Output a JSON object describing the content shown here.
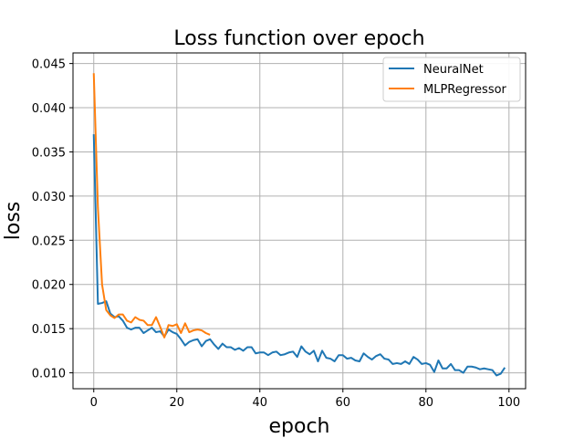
{
  "chart_data": {
    "type": "line",
    "title": "Loss function over epoch",
    "xlabel": "epoch",
    "ylabel": "loss",
    "xlim": [
      -5,
      104
    ],
    "ylim": [
      0.0082,
      0.0462
    ],
    "xticks": [
      0,
      20,
      40,
      60,
      80,
      100
    ],
    "yticks": [
      0.01,
      0.015,
      0.02,
      0.025,
      0.03,
      0.035,
      0.04,
      0.045
    ],
    "ytick_labels": [
      "0.010",
      "0.015",
      "0.020",
      "0.025",
      "0.030",
      "0.035",
      "0.040",
      "0.045"
    ],
    "grid": true,
    "legend": "top-right",
    "series": [
      {
        "name": "NeuralNet",
        "color": "#1f77b4",
        "x": [
          0,
          1,
          2,
          3,
          4,
          5,
          6,
          7,
          8,
          9,
          10,
          11,
          12,
          13,
          14,
          15,
          16,
          17,
          18,
          19,
          20,
          21,
          22,
          23,
          24,
          25,
          26,
          27,
          28,
          29,
          30,
          31,
          32,
          33,
          34,
          35,
          36,
          37,
          38,
          39,
          40,
          41,
          42,
          43,
          44,
          45,
          46,
          47,
          48,
          49,
          50,
          51,
          52,
          53,
          54,
          55,
          56,
          57,
          58,
          59,
          60,
          61,
          62,
          63,
          64,
          65,
          66,
          67,
          68,
          69,
          70,
          71,
          72,
          73,
          74,
          75,
          76,
          77,
          78,
          79,
          80,
          81,
          82,
          83,
          84,
          85,
          86,
          87,
          88,
          89,
          90,
          91,
          92,
          93,
          94,
          95,
          96,
          97,
          98,
          99
        ],
        "values": [
          0.037,
          0.0178,
          0.0179,
          0.0181,
          0.0167,
          0.0163,
          0.0164,
          0.0159,
          0.0151,
          0.0149,
          0.0151,
          0.0151,
          0.0145,
          0.0148,
          0.0151,
          0.0146,
          0.0147,
          0.0141,
          0.0149,
          0.0146,
          0.0144,
          0.0138,
          0.0131,
          0.0135,
          0.0137,
          0.0138,
          0.013,
          0.0136,
          0.0138,
          0.0132,
          0.0127,
          0.0133,
          0.0129,
          0.0129,
          0.0126,
          0.0128,
          0.0125,
          0.0129,
          0.0129,
          0.0122,
          0.0123,
          0.0123,
          0.012,
          0.0123,
          0.0124,
          0.012,
          0.0121,
          0.0123,
          0.0124,
          0.0118,
          0.013,
          0.0124,
          0.0121,
          0.0125,
          0.0113,
          0.0125,
          0.0117,
          0.0116,
          0.0113,
          0.012,
          0.012,
          0.0116,
          0.0117,
          0.0114,
          0.0113,
          0.0122,
          0.0118,
          0.0115,
          0.0119,
          0.0121,
          0.0116,
          0.0115,
          0.011,
          0.0111,
          0.011,
          0.0113,
          0.011,
          0.0118,
          0.0115,
          0.011,
          0.0111,
          0.0109,
          0.0101,
          0.0114,
          0.0105,
          0.0105,
          0.011,
          0.0103,
          0.0103,
          0.01,
          0.0107,
          0.0107,
          0.0106,
          0.0104,
          0.0105,
          0.0104,
          0.0103,
          0.0097,
          0.0099,
          0.0106
        ]
      },
      {
        "name": "MLPRegressor",
        "color": "#ff7f0e",
        "x": [
          0,
          1,
          2,
          3,
          4,
          5,
          6,
          7,
          8,
          9,
          10,
          11,
          12,
          13,
          14,
          15,
          16,
          17,
          18,
          19,
          20,
          21,
          22,
          23,
          24,
          25,
          26,
          27,
          28
        ],
        "values": [
          0.0439,
          0.0287,
          0.02,
          0.0171,
          0.0165,
          0.0162,
          0.0166,
          0.0166,
          0.0159,
          0.0157,
          0.0163,
          0.016,
          0.0159,
          0.0154,
          0.0154,
          0.0163,
          0.0152,
          0.014,
          0.0154,
          0.0153,
          0.0155,
          0.0145,
          0.0156,
          0.0146,
          0.0148,
          0.0149,
          0.0148,
          0.0145,
          0.0143
        ]
      }
    ]
  }
}
